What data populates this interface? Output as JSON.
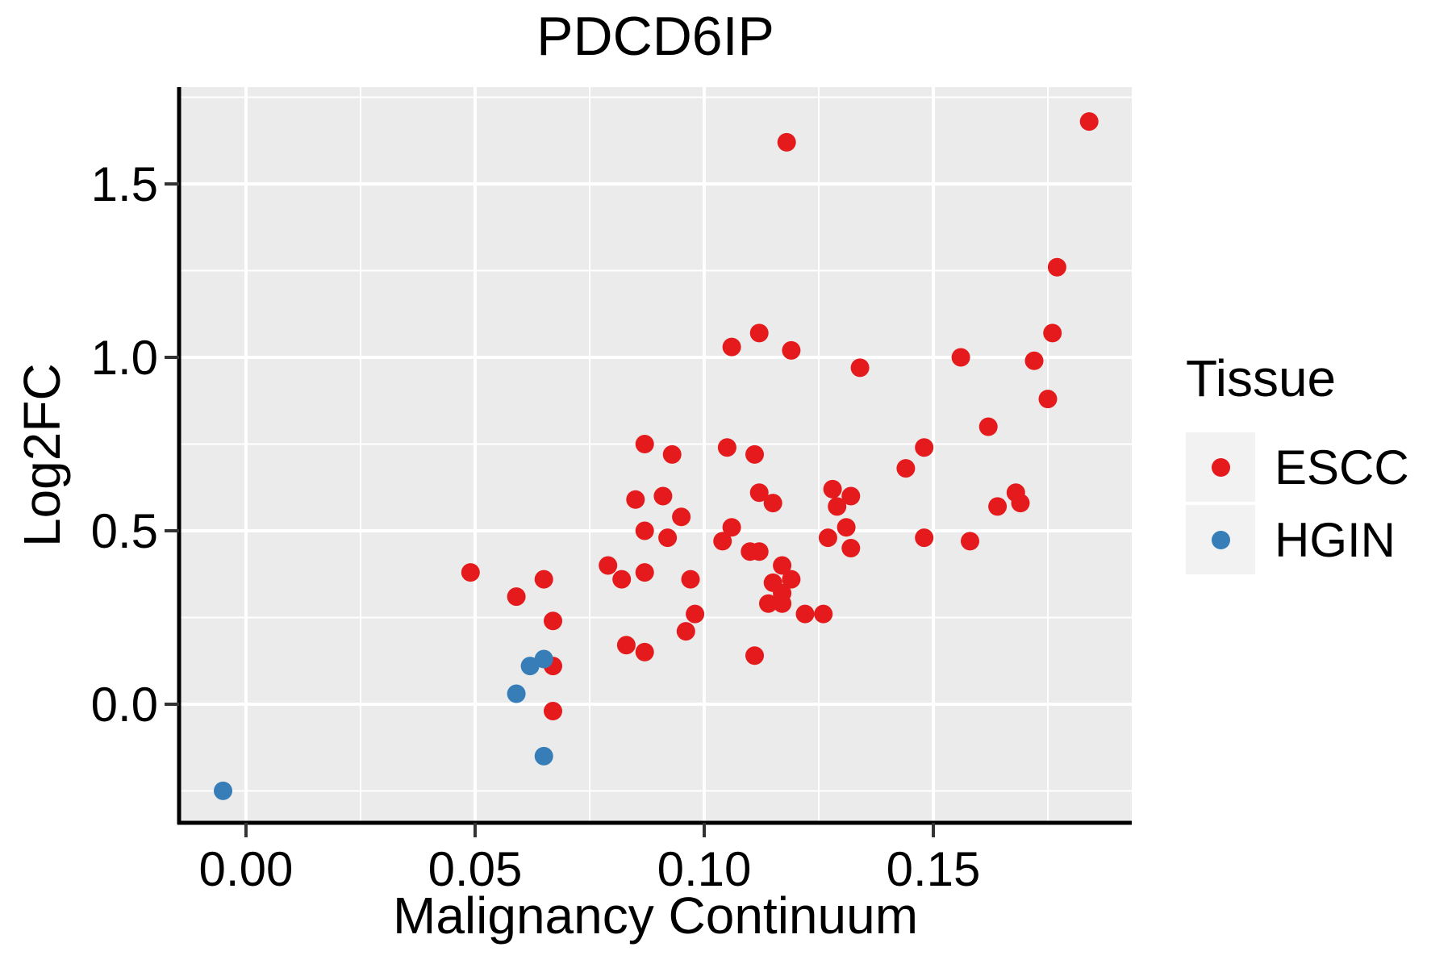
{
  "title": "PDCD6IP",
  "colors": {
    "escc": "#E41A1C",
    "hgin": "#377EB8",
    "panel_background": "#EBEBEB",
    "grid": "#FFFFFF",
    "axis_line": "#000000",
    "tick_mark": "#333333",
    "legend_key_background": "#F2F2F2",
    "text": "#000000"
  },
  "legend": {
    "title": "Tissue",
    "position": "right",
    "entries": [
      {
        "label": "ESCC",
        "color": "#E41A1C"
      },
      {
        "label": "HGIN",
        "color": "#377EB8"
      }
    ]
  },
  "chart_data": {
    "type": "scatter",
    "title": "PDCD6IP",
    "xlabel": "Malignancy Continuum",
    "ylabel": "Log2FC",
    "xlim": [
      -0.0146,
      0.1933
    ],
    "ylim": [
      -0.342,
      1.779
    ],
    "grid": "major and minor white gridlines on gray panel",
    "legend_position": "right",
    "x_ticks": {
      "values": [
        0.0,
        0.05,
        0.1,
        0.15
      ],
      "labels": [
        "0.00",
        "0.05",
        "0.10",
        "0.15"
      ],
      "minor": [
        0.025,
        0.075,
        0.125,
        0.175
      ]
    },
    "y_ticks": {
      "values": [
        0.0,
        0.5,
        1.0,
        1.5
      ],
      "labels": [
        "0.0",
        "0.5",
        "1.0",
        "1.5"
      ],
      "minor": [
        -0.25,
        0.25,
        0.75,
        1.25,
        1.75
      ]
    },
    "series": [
      {
        "name": "ESCC",
        "color": "#E41A1C",
        "points": [
          [
            0.049,
            0.38
          ],
          [
            0.059,
            0.31
          ],
          [
            0.065,
            0.36
          ],
          [
            0.067,
            0.24
          ],
          [
            0.067,
            0.11
          ],
          [
            0.067,
            -0.02
          ],
          [
            0.079,
            0.4
          ],
          [
            0.082,
            0.36
          ],
          [
            0.087,
            0.38
          ],
          [
            0.083,
            0.17
          ],
          [
            0.087,
            0.15
          ],
          [
            0.087,
            0.75
          ],
          [
            0.093,
            0.72
          ],
          [
            0.085,
            0.59
          ],
          [
            0.091,
            0.6
          ],
          [
            0.095,
            0.54
          ],
          [
            0.087,
            0.5
          ],
          [
            0.092,
            0.48
          ],
          [
            0.097,
            0.36
          ],
          [
            0.098,
            0.26
          ],
          [
            0.096,
            0.21
          ],
          [
            0.111,
            0.14
          ],
          [
            0.106,
            0.51
          ],
          [
            0.104,
            0.47
          ],
          [
            0.11,
            0.44
          ],
          [
            0.112,
            0.44
          ],
          [
            0.117,
            0.4
          ],
          [
            0.119,
            0.36
          ],
          [
            0.115,
            0.35
          ],
          [
            0.117,
            0.32
          ],
          [
            0.114,
            0.29
          ],
          [
            0.117,
            0.29
          ],
          [
            0.122,
            0.26
          ],
          [
            0.126,
            0.26
          ],
          [
            0.105,
            0.74
          ],
          [
            0.111,
            0.72
          ],
          [
            0.106,
            1.03
          ],
          [
            0.112,
            1.07
          ],
          [
            0.119,
            1.02
          ],
          [
            0.134,
            0.97
          ],
          [
            0.144,
            0.68
          ],
          [
            0.148,
            0.74
          ],
          [
            0.112,
            0.61
          ],
          [
            0.115,
            0.58
          ],
          [
            0.128,
            0.62
          ],
          [
            0.132,
            0.6
          ],
          [
            0.129,
            0.57
          ],
          [
            0.131,
            0.51
          ],
          [
            0.127,
            0.48
          ],
          [
            0.132,
            0.45
          ],
          [
            0.156,
            1.0
          ],
          [
            0.172,
            0.99
          ],
          [
            0.176,
            1.07
          ],
          [
            0.175,
            0.88
          ],
          [
            0.177,
            1.26
          ],
          [
            0.162,
            0.8
          ],
          [
            0.164,
            0.57
          ],
          [
            0.168,
            0.61
          ],
          [
            0.169,
            0.58
          ],
          [
            0.148,
            0.48
          ],
          [
            0.158,
            0.47
          ],
          [
            0.118,
            1.62
          ],
          [
            0.184,
            1.68
          ]
        ]
      },
      {
        "name": "HGIN",
        "color": "#377EB8",
        "points": [
          [
            -0.005,
            -0.25
          ],
          [
            0.059,
            0.03
          ],
          [
            0.062,
            0.11
          ],
          [
            0.065,
            0.13
          ],
          [
            0.065,
            -0.15
          ]
        ]
      }
    ]
  }
}
